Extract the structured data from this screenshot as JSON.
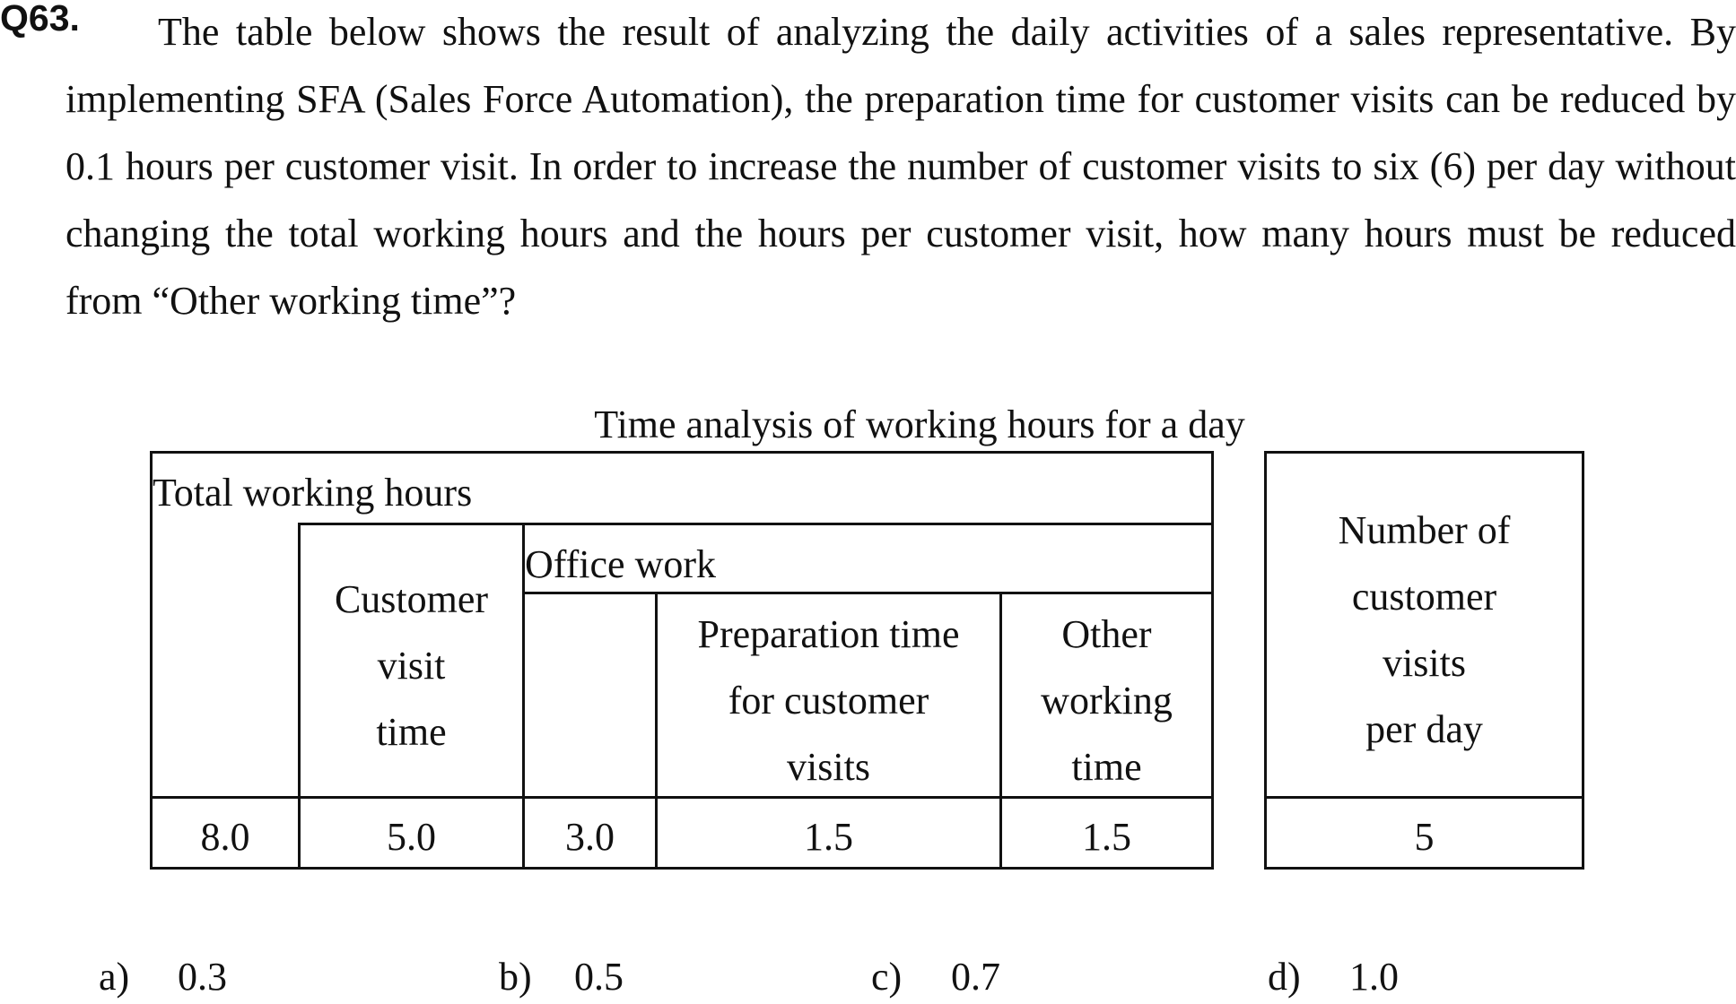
{
  "question": {
    "number": "Q63.",
    "text": "The table below shows the result of analyzing the daily activities of a sales representative. By implementing SFA (Sales Force Automation), the preparation time for customer visits can be reduced by 0.1 hours per customer visit. In order to increase the number of customer visits to six (6) per day without changing the total working hours and the hours per customer visit, how many hours must be reduced from “Other working time”?"
  },
  "table": {
    "caption": "Time analysis of working hours for a day",
    "headers": {
      "total_working_hours": "Total working hours",
      "customer_visit_time": [
        "Customer",
        "visit",
        "time"
      ],
      "office_work": "Office work",
      "preparation_time": [
        "Preparation time",
        "for customer",
        "visits"
      ],
      "other_working_time": [
        "Other",
        "working",
        "time"
      ],
      "visits_per_day": [
        "Number of",
        "customer",
        "visits",
        "per day"
      ]
    },
    "values": {
      "total_working_hours": "8.0",
      "customer_visit_time": "5.0",
      "office_work": "3.0",
      "preparation_time": "1.5",
      "other_working_time": "1.5",
      "visits_per_day": "5"
    }
  },
  "answers": [
    {
      "letter": "a)",
      "value": "0.3"
    },
    {
      "letter": "b)",
      "value": "0.5"
    },
    {
      "letter": "c)",
      "value": "0.7"
    },
    {
      "letter": "d)",
      "value": "1.0"
    }
  ]
}
